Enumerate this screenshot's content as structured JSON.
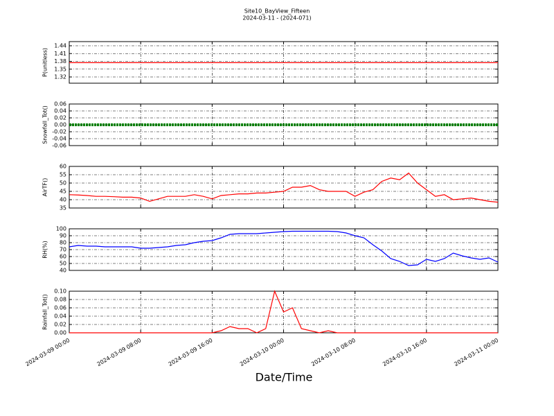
{
  "figure": {
    "title": "Site10_BayView_Fifteen",
    "subtitle": "2024-03-11 - (2024-071)"
  },
  "xaxis": {
    "label": "Date/Time",
    "lim": [
      0,
      48
    ],
    "ticks": [
      {
        "value": 0,
        "label": "2024-03-09 00:00"
      },
      {
        "value": 8,
        "label": "2024-03-09 08:00"
      },
      {
        "value": 16,
        "label": "2024-03-09 16:00"
      },
      {
        "value": 24,
        "label": "2024-03-10 00:00"
      },
      {
        "value": 32,
        "label": "2024-03-10 08:00"
      },
      {
        "value": 40,
        "label": "2024-03-10 16:00"
      },
      {
        "value": 48,
        "label": "2024-03-11 00:00"
      }
    ],
    "x": [
      0,
      1,
      2,
      3,
      4,
      5,
      6,
      7,
      8,
      9,
      10,
      11,
      12,
      13,
      14,
      15,
      16,
      17,
      18,
      19,
      20,
      21,
      22,
      23,
      24,
      25,
      26,
      27,
      28,
      29,
      30,
      31,
      32,
      33,
      34,
      35,
      36,
      37,
      38,
      39,
      40,
      41,
      42,
      43,
      44,
      45,
      46,
      47,
      48
    ]
  },
  "chart_data": [
    {
      "type": "line",
      "ylabel": "P(unitless)",
      "color": "#ff0000",
      "ylim": [
        1.296,
        1.456
      ],
      "yticks": [
        1.32,
        1.35,
        1.38,
        1.41,
        1.44
      ],
      "grid": true,
      "values": [
        1.375,
        1.375,
        1.375,
        1.375,
        1.375,
        1.375,
        1.375,
        1.375,
        1.375,
        1.375,
        1.375,
        1.375,
        1.375,
        1.375,
        1.375,
        1.375,
        1.375,
        1.375,
        1.375,
        1.375,
        1.375,
        1.375,
        1.375,
        1.375,
        1.375,
        1.375,
        1.375,
        1.375,
        1.375,
        1.375,
        1.375,
        1.375,
        1.375,
        1.375,
        1.375,
        1.375,
        1.375,
        1.375,
        1.375,
        1.375,
        1.375,
        1.375,
        1.375,
        1.375,
        1.375,
        1.375,
        1.375,
        1.375,
        1.375
      ]
    },
    {
      "type": "line",
      "ylabel": "Snowfall_Tot()",
      "color": "#008000",
      "ylim": [
        -0.06,
        0.06
      ],
      "yticks": [
        -0.06,
        -0.04,
        -0.02,
        {
          "value": 0,
          "label": "0.00"
        },
        0.02,
        0.04,
        0.06
      ],
      "grid": true,
      "thick": true,
      "values": [
        0,
        0,
        0,
        0,
        0,
        0,
        0,
        0,
        0,
        0,
        0,
        0,
        0,
        0,
        0,
        0,
        0,
        0,
        0,
        0,
        0,
        0,
        0,
        0,
        0,
        0,
        0,
        0,
        0,
        0,
        0,
        0,
        0,
        0,
        0,
        0,
        0,
        0,
        0,
        0,
        0,
        0,
        0,
        0,
        0,
        0,
        0,
        0,
        0
      ]
    },
    {
      "type": "line",
      "ylabel": "AirTF()",
      "color": "#ff0000",
      "ylim": [
        35,
        60
      ],
      "yticks": [
        35,
        40,
        45,
        50,
        55,
        60
      ],
      "grid": true,
      "values": [
        43,
        42.8,
        42.5,
        42,
        42,
        41.8,
        41.5,
        41.5,
        41,
        39,
        40.5,
        42,
        42,
        42,
        43,
        42,
        40.5,
        42.5,
        43,
        43.5,
        43.5,
        44,
        44,
        44.5,
        45,
        47.5,
        47.5,
        48.5,
        46,
        45,
        45,
        45,
        42,
        44.5,
        46,
        51,
        53,
        52,
        56,
        50,
        46,
        42,
        43,
        40,
        40.5,
        41,
        40,
        39,
        38.5
      ]
    },
    {
      "type": "line",
      "ylabel": "RH(%)",
      "color": "#0000ff",
      "ylim": [
        40,
        100
      ],
      "yticks": [
        40,
        50,
        60,
        70,
        80,
        90,
        100
      ],
      "grid": true,
      "values": [
        74,
        76,
        75,
        75,
        74,
        74,
        74,
        74,
        72,
        72,
        73,
        74,
        76,
        77,
        80,
        82,
        83,
        87,
        92,
        93,
        93,
        93,
        94,
        95,
        96,
        96.5,
        96.5,
        96.5,
        96.5,
        96.5,
        96,
        94,
        90,
        87,
        77,
        68,
        57,
        53,
        47,
        48,
        56,
        53,
        57,
        65,
        61,
        58,
        56,
        58,
        52
      ]
    },
    {
      "type": "line",
      "ylabel": "Rainfall_Tot()",
      "color": "#ff0000",
      "ylim": [
        0,
        0.1
      ],
      "yticks": [
        {
          "value": 0,
          "label": "0.00"
        },
        0.02,
        0.04,
        0.06,
        0.08,
        {
          "value": 0.1,
          "label": "0.10"
        }
      ],
      "grid": true,
      "values": [
        0,
        0,
        0,
        0,
        0,
        0,
        0,
        0,
        0,
        0,
        0,
        0,
        0,
        0,
        0,
        0,
        0,
        0.005,
        0.015,
        0.01,
        0.01,
        0,
        0.01,
        0.1,
        0.05,
        0.06,
        0.01,
        0.005,
        0,
        0.005,
        0,
        0,
        0,
        0,
        0,
        0,
        0,
        0,
        0,
        0,
        0,
        0,
        0,
        0,
        0,
        0,
        0,
        0,
        0
      ]
    }
  ]
}
